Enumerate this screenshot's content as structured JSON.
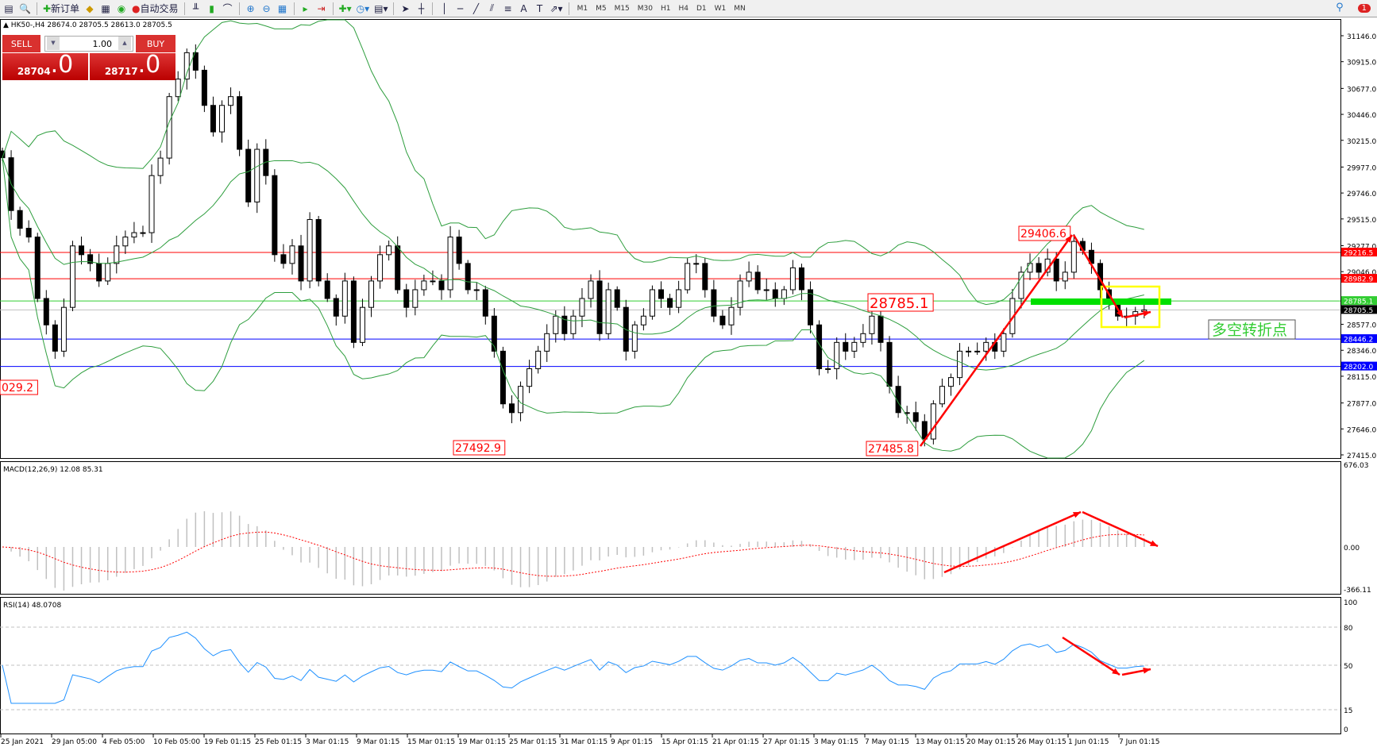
{
  "toolbar": {
    "new_order": "新订单",
    "auto_trading": "自动交易",
    "timeframes": [
      "M1",
      "M5",
      "M15",
      "M30",
      "H1",
      "H4",
      "D1",
      "W1",
      "MN"
    ],
    "notifications": "1"
  },
  "symbol_header": "HK50-,H4  28674.0 28705.5 28613.0 28705.5",
  "trade_panel": {
    "sell": "SELL",
    "buy": "BUY",
    "lots": "1.00",
    "bid_main": "28704",
    "bid_frac": ".0",
    "ask_main": "28717",
    "ask_frac": ".0"
  },
  "chart_data": {
    "type": "candlestick",
    "symbol": "HK50-",
    "timeframe": "H4",
    "closes": [
      30060,
      29590,
      29432,
      29354,
      28807,
      28572,
      28338,
      28728,
      29275,
      29197,
      29119,
      28963,
      29119,
      29275,
      29354,
      29393,
      29393,
      29901,
      30057,
      30604,
      30760,
      30995,
      30839,
      30526,
      30290,
      30526,
      30604,
      30135,
      29666,
      30135,
      29901,
      29197,
      29119,
      29275,
      28963,
      29510,
      28963,
      28807,
      28650,
      28963,
      28416,
      28728,
      28963,
      29197,
      29275,
      28885,
      28728,
      28885,
      28963,
      28963,
      28885,
      29354,
      29119,
      28885,
      28885,
      28650,
      28338,
      27869,
      27791,
      28025,
      28182,
      28338,
      28494,
      28650,
      28494,
      28650,
      28807,
      28963,
      28494,
      28885,
      28728,
      28338,
      28572,
      28650,
      28885,
      28807,
      28728,
      28885,
      29119,
      29119,
      28885,
      28650,
      28572,
      28728,
      28963,
      29041,
      28885,
      28885,
      28807,
      28885,
      29080,
      28885,
      28572,
      28182,
      28182,
      28416,
      28338,
      28416,
      28494,
      28650,
      28416,
      28025,
      27791,
      27791,
      27712,
      27556,
      27869,
      28025,
      28103,
      28338,
      28338,
      28338,
      28416,
      28338,
      28494,
      28807,
      29041,
      29119,
      29041,
      29158,
      28963,
      29041,
      29315,
      29236,
      29119,
      28885,
      28768,
      28650,
      28650,
      28690,
      28705.5
    ],
    "price_axis": {
      "min": 27415.0,
      "max": 31146.0,
      "ticks": [
        "31146.0",
        "30915.0",
        "30677.0",
        "30446.0",
        "30215.0",
        "29977.0",
        "29746.0",
        "29515.0",
        "29277.0",
        "29046.0",
        "28577.0",
        "28346.0",
        "28115.0",
        "27877.0",
        "27646.0",
        "27415.0"
      ]
    },
    "tick_values": [
      31146,
      30915,
      30677,
      30446,
      30215,
      29977,
      29746,
      29515,
      29277,
      29046,
      28577,
      28346,
      28115,
      27877,
      27646,
      27415
    ],
    "horizontal_lines": [
      {
        "price": 29216.5,
        "label": "29216.5",
        "color": "#ff0000"
      },
      {
        "price": 28982.9,
        "label": "28982.9",
        "color": "#ff0000"
      },
      {
        "price": 28785.1,
        "label": "28785.1",
        "color": "#32cd32"
      },
      {
        "price": 28705.5,
        "label": "28705.5",
        "color": "#000000"
      },
      {
        "price": 28446.2,
        "label": "28446.2",
        "color": "#0000ff"
      },
      {
        "price": 28202.0,
        "label": "28202.0",
        "color": "#0000ff"
      }
    ],
    "annotations": [
      "29406.6",
      "28785.1",
      "27492.9",
      "27485.8",
      "029.2"
    ],
    "note_text": "多空转折点",
    "macd": {
      "label": "MACD(12,26,9) 12.08 85.31",
      "ticks": [
        "676.03",
        "0.00",
        "-366.11"
      ]
    },
    "rsi": {
      "label": "RSI(14) 48.0708",
      "ticks": [
        "100",
        "80",
        "50",
        "15",
        "0"
      ]
    },
    "x_labels": [
      "25 Jan 2021",
      "29 Jan 05:00",
      "4 Feb 05:00",
      "10 Feb 05:00",
      "19 Feb 01:15",
      "25 Feb 01:15",
      "3 Mar 01:15",
      "9 Mar 01:15",
      "15 Mar 01:15",
      "19 Mar 01:15",
      "25 Mar 01:15",
      "31 Mar 01:15",
      "9 Apr 01:15",
      "15 Apr 01:15",
      "21 Apr 01:15",
      "27 Apr 01:15",
      "3 May 01:15",
      "7 May 01:15",
      "13 May 01:15",
      "20 May 01:15",
      "26 May 01:15",
      "1 Jun 01:15",
      "7 Jun 01:15"
    ],
    "colors": {
      "bands": "#2e9e3e",
      "macd_signal": "#ff0000",
      "macd_hist": "#c0c0c0",
      "rsi": "#1e90ff",
      "arrows": "#ff0000",
      "highlight_bar": "#00e000",
      "highlight_box": "#ffff00"
    }
  }
}
